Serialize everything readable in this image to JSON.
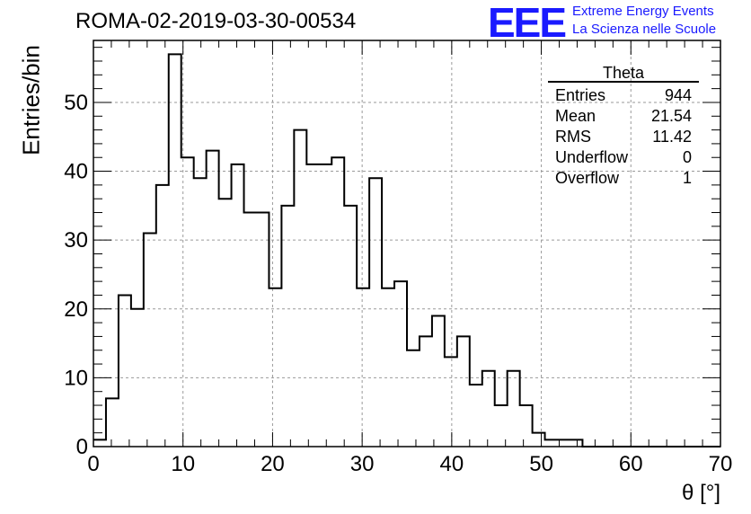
{
  "header": {
    "title": "ROMA-02-2019-03-30-00534",
    "logo": "EEE",
    "logo_line1": "Extreme Energy Events",
    "logo_line2": "La Scienza nelle Scuole"
  },
  "stats": {
    "title": "Theta",
    "rows": [
      {
        "label": "Entries",
        "value": "944"
      },
      {
        "label": "Mean",
        "value": "21.54"
      },
      {
        "label": "RMS",
        "value": "11.42"
      },
      {
        "label": "Underflow",
        "value": "0"
      },
      {
        "label": "Overflow",
        "value": "1"
      }
    ]
  },
  "chart_data": {
    "type": "histogram",
    "xlabel": "θ [°]",
    "ylabel": "Entries/bin",
    "xlim": [
      0,
      70
    ],
    "ylim": [
      0,
      59
    ],
    "bin_width": 1.4,
    "bin_start": 0,
    "x_ticks": [
      0,
      10,
      20,
      30,
      40,
      50,
      60,
      70
    ],
    "y_ticks": [
      0,
      10,
      20,
      30,
      40,
      50
    ],
    "grid": true,
    "values": [
      1,
      7,
      22,
      20,
      31,
      38,
      57,
      42,
      39,
      43,
      36,
      41,
      34,
      34,
      23,
      35,
      46,
      41,
      41,
      42,
      35,
      23,
      39,
      23,
      24,
      14,
      16,
      19,
      13,
      16,
      9,
      11,
      6,
      11,
      6,
      2,
      1,
      1,
      1,
      0,
      0,
      0,
      0,
      0,
      0,
      0,
      0,
      0,
      0,
      0
    ],
    "line_color": "#000000",
    "grid_color": "#9a9a9a"
  }
}
